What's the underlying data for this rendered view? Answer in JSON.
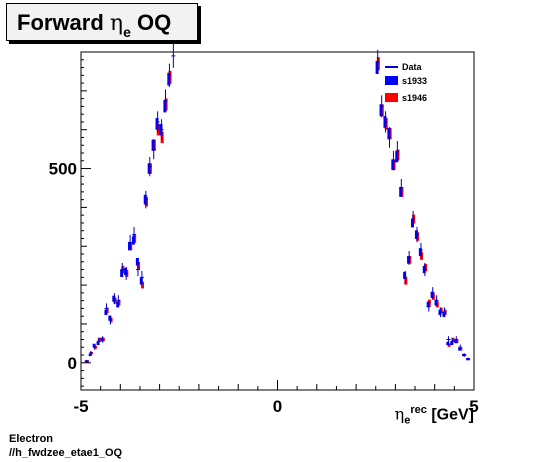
{
  "title": {
    "main": "Forward",
    "greek": "η",
    "sub": "e",
    "suffix": "OQ"
  },
  "x_axis": {
    "greek": "η",
    "sup": "rec",
    "sub": "e",
    "unit": "[GeV]"
  },
  "footer": {
    "line1": "Electron",
    "line2": "//h_fwdzee_etae1_OQ"
  },
  "colors": {
    "data": "#0000cc",
    "s1933": "#0000ff",
    "s1946": "#ff0000"
  },
  "chart_data": {
    "type": "scatter",
    "title": "Forward ηe OQ",
    "xlabel": "ηe rec [GeV]",
    "ylabel": "",
    "xlim": [
      -5,
      5
    ],
    "ylim": [
      -70,
      800
    ],
    "xticks": [
      -5,
      0,
      5
    ],
    "yticks": [
      0,
      500
    ],
    "legend": {
      "position": "top-right",
      "entries": [
        "Data",
        "s1933",
        "s1946"
      ]
    },
    "x": [
      -4.85,
      -4.75,
      -4.65,
      -4.55,
      -4.45,
      -4.35,
      -4.25,
      -4.15,
      -4.05,
      -3.95,
      -3.85,
      -3.75,
      -3.65,
      -3.55,
      -3.45,
      -3.35,
      -3.25,
      -3.15,
      -3.05,
      -2.95,
      -2.85,
      -2.75,
      -2.65,
      -2.55,
      2.55,
      2.65,
      2.75,
      2.85,
      2.95,
      3.05,
      3.15,
      3.25,
      3.35,
      3.45,
      3.55,
      3.65,
      3.75,
      3.85,
      3.95,
      4.05,
      4.15,
      4.25,
      4.35,
      4.45,
      4.55,
      4.65,
      4.75,
      4.85
    ],
    "series": [
      {
        "name": "Data",
        "values": [
          5,
          25,
          40,
          55,
          60,
          140,
          110,
          165,
          160,
          240,
          230,
          310,
          330,
          240,
          220,
          420,
          505,
          550,
          620,
          600,
          675,
          740,
          790,
          0,
          775,
          660,
          620,
          580,
          520,
          545,
          450,
          220,
          270,
          370,
          330,
          290,
          240,
          145,
          180,
          160,
          130,
          130,
          60,
          55,
          60,
          40,
          20,
          10
        ]
      },
      {
        "name": "s1933",
        "values": [
          5,
          20,
          45,
          50,
          60,
          130,
          115,
          165,
          150,
          230,
          235,
          300,
          315,
          260,
          210,
          420,
          500,
          560,
          615,
          600,
          660,
          730,
          0,
          0,
          760,
          650,
          620,
          590,
          510,
          530,
          440,
          225,
          265,
          360,
          330,
          285,
          240,
          150,
          175,
          155,
          130,
          125,
          50,
          50,
          55,
          35,
          20,
          10
        ]
      },
      {
        "name": "s1946",
        "values": [
          5,
          25,
          40,
          60,
          60,
          135,
          110,
          160,
          155,
          240,
          230,
          300,
          320,
          250,
          200,
          415,
          500,
          560,
          600,
          580,
          665,
          735,
          0,
          0,
          770,
          650,
          615,
          590,
          510,
          535,
          440,
          210,
          265,
          370,
          325,
          275,
          245,
          155,
          170,
          150,
          135,
          130,
          45,
          60,
          55,
          35,
          20,
          10
        ]
      }
    ]
  }
}
